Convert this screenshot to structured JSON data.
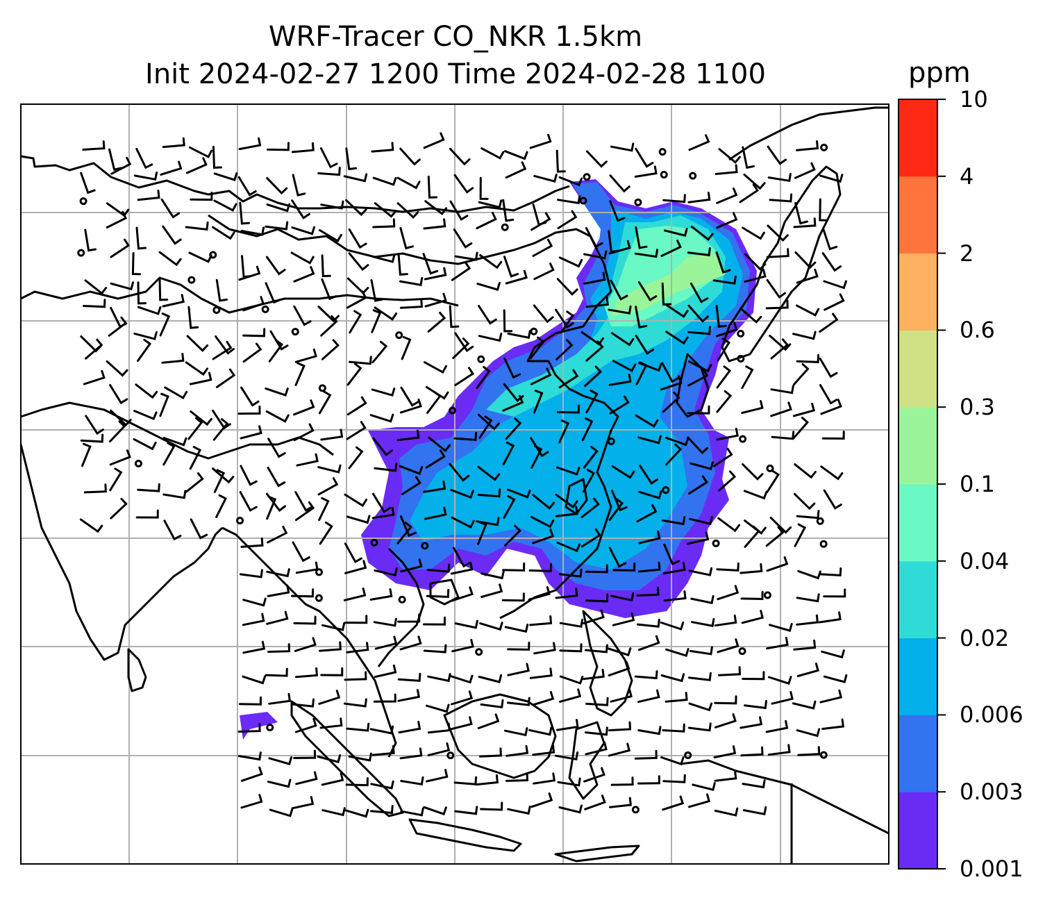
{
  "title": {
    "line1": "WRF-Tracer CO_NKR 1.5km",
    "line2": "Init 2024-02-27 1200 Time 2024-02-28 1100"
  },
  "colorbar": {
    "unit": "ppm",
    "ticks": [
      "0.001",
      "0.003",
      "0.006",
      "0.02",
      "0.04",
      "0.1",
      "0.3",
      "0.6",
      "2",
      "4",
      "10"
    ],
    "colors": [
      "#6a2bf5",
      "#3273ef",
      "#03b0e9",
      "#2fdbd6",
      "#6af8c4",
      "#9af59a",
      "#cfe184",
      "#fdb161",
      "#ff733d",
      "#ff2a15"
    ]
  },
  "map": {
    "gridlines": true,
    "gridline_color": "#b0b0b0",
    "coastline_color": "#000000",
    "field_name": "CO_NKR tracer",
    "wind_glyphs": "wind barbs"
  }
}
